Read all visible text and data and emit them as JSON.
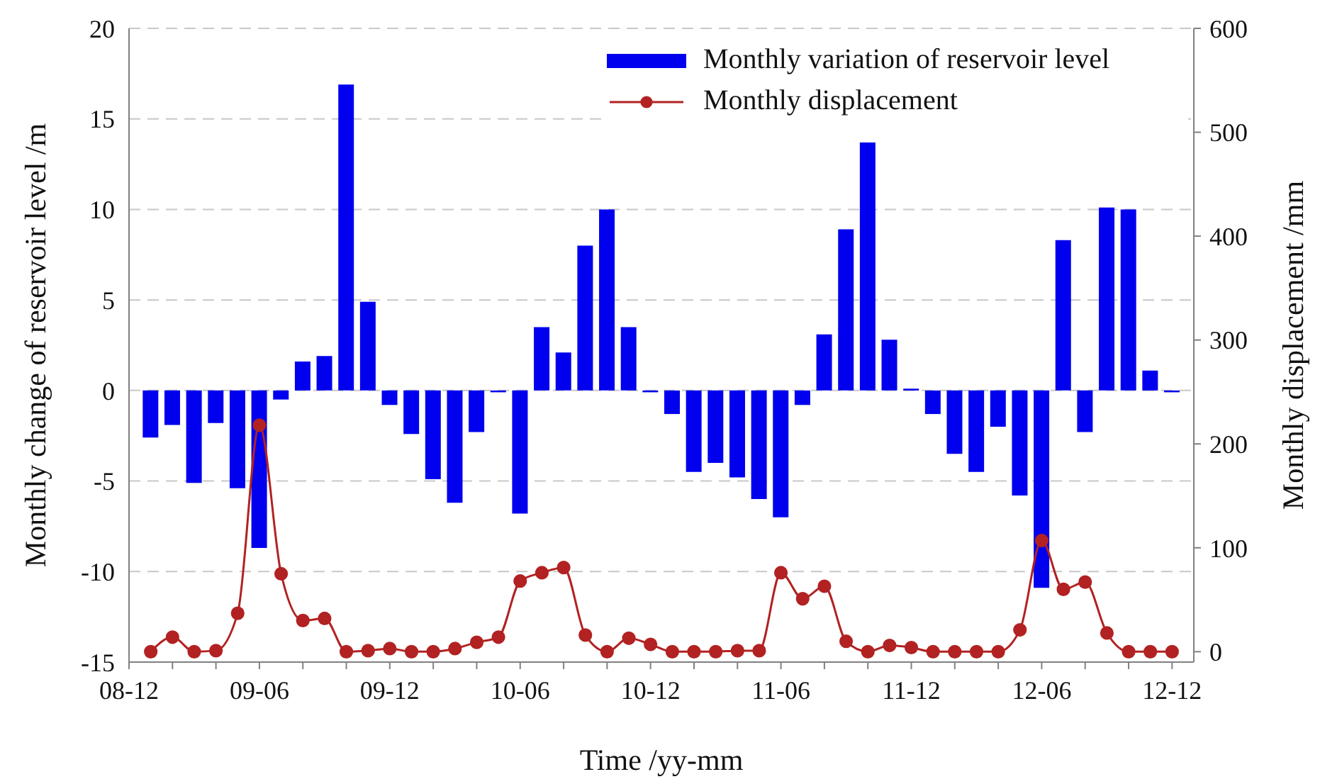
{
  "chart_data": {
    "type": "bar",
    "xlabel": "Time /yy-mm",
    "ylabel": "Monthly change of reservoir level /m",
    "y2label": "Monthly displacement /mm",
    "x": [
      "2009-01",
      "2009-02",
      "2009-03",
      "2009-04",
      "2009-05",
      "2009-06",
      "2009-07",
      "2009-08",
      "2009-09",
      "2009-10",
      "2009-11",
      "2009-12",
      "2010-01",
      "2010-02",
      "2010-03",
      "2010-04",
      "2010-05",
      "2010-06",
      "2010-07",
      "2010-08",
      "2010-09",
      "2010-10",
      "2010-11",
      "2010-12",
      "2011-01",
      "2011-02",
      "2011-03",
      "2011-04",
      "2011-05",
      "2011-06",
      "2011-07",
      "2011-08",
      "2011-09",
      "2011-10",
      "2011-11",
      "2011-12",
      "2012-01",
      "2012-02",
      "2012-03",
      "2012-04",
      "2012-05",
      "2012-06",
      "2012-07",
      "2012-08",
      "2012-09",
      "2012-10",
      "2012-11",
      "2012-12"
    ],
    "xlim": [
      "2008-12",
      "2013-01"
    ],
    "xticks": [
      {
        "value": "2008-12",
        "label": "08-12"
      },
      {
        "value": "2009-02",
        "label": null
      },
      {
        "value": "2009-04",
        "label": null
      },
      {
        "value": "2009-06",
        "label": "09-06"
      },
      {
        "value": "2009-08",
        "label": null
      },
      {
        "value": "2009-10",
        "label": null
      },
      {
        "value": "2009-12",
        "label": "09-12"
      },
      {
        "value": "2010-02",
        "label": null
      },
      {
        "value": "2010-04",
        "label": null
      },
      {
        "value": "2010-06",
        "label": "10-06"
      },
      {
        "value": "2010-08",
        "label": null
      },
      {
        "value": "2010-10",
        "label": null
      },
      {
        "value": "2010-12",
        "label": "10-12"
      },
      {
        "value": "2011-02",
        "label": null
      },
      {
        "value": "2011-04",
        "label": null
      },
      {
        "value": "2011-06",
        "label": "11-06"
      },
      {
        "value": "2011-08",
        "label": null
      },
      {
        "value": "2011-10",
        "label": null
      },
      {
        "value": "2011-12",
        "label": "11-12"
      },
      {
        "value": "2012-02",
        "label": null
      },
      {
        "value": "2012-04",
        "label": null
      },
      {
        "value": "2012-06",
        "label": "12-06"
      },
      {
        "value": "2012-08",
        "label": null
      },
      {
        "value": "2012-10",
        "label": null
      },
      {
        "value": "2012-12",
        "label": "12-12"
      }
    ],
    "ylim": [
      -15,
      20
    ],
    "yticks": [
      -15,
      -10,
      -5,
      0,
      5,
      10,
      15,
      20
    ],
    "y2lim": [
      -10,
      600
    ],
    "y2ticks": [
      0,
      100,
      200,
      300,
      400,
      500,
      600
    ],
    "grid": "y",
    "legend": "top right",
    "series": [
      {
        "name": "Monthly variation of reservoir level",
        "color": "#0000ee",
        "values": [
          -2.6,
          -1.9,
          -5.1,
          -1.8,
          -5.4,
          -8.7,
          -0.5,
          1.6,
          1.9,
          16.9,
          4.9,
          -0.8,
          -2.4,
          -4.9,
          -6.2,
          -2.3,
          -0.1,
          -6.8,
          3.5,
          2.1,
          8,
          10,
          3.5,
          -0.1,
          -1.3,
          -4.5,
          -4,
          -4.8,
          -6,
          -7,
          -0.8,
          3.1,
          8.9,
          13.7,
          2.8,
          0.1,
          -1.3,
          -3.5,
          -4.5,
          -2,
          -5.8,
          -10.9,
          8.3,
          -2.3,
          10.1,
          10,
          1.1,
          -0.1
        ]
      },
      {
        "name": "Monthly displacement",
        "type": "line",
        "axis": "y2",
        "color": "#b22222",
        "marker": "circle",
        "line_style": "solid",
        "values": [
          0,
          14,
          0,
          1,
          37,
          218,
          75,
          30,
          32,
          0,
          1,
          3,
          0,
          0,
          3,
          9,
          14,
          68,
          76,
          81,
          16,
          0,
          13,
          7,
          0,
          0,
          0,
          1,
          1,
          76,
          51,
          63,
          10,
          0,
          6,
          4,
          0,
          0,
          0,
          0,
          21,
          107,
          60,
          67,
          18,
          0,
          0,
          0
        ]
      }
    ]
  }
}
